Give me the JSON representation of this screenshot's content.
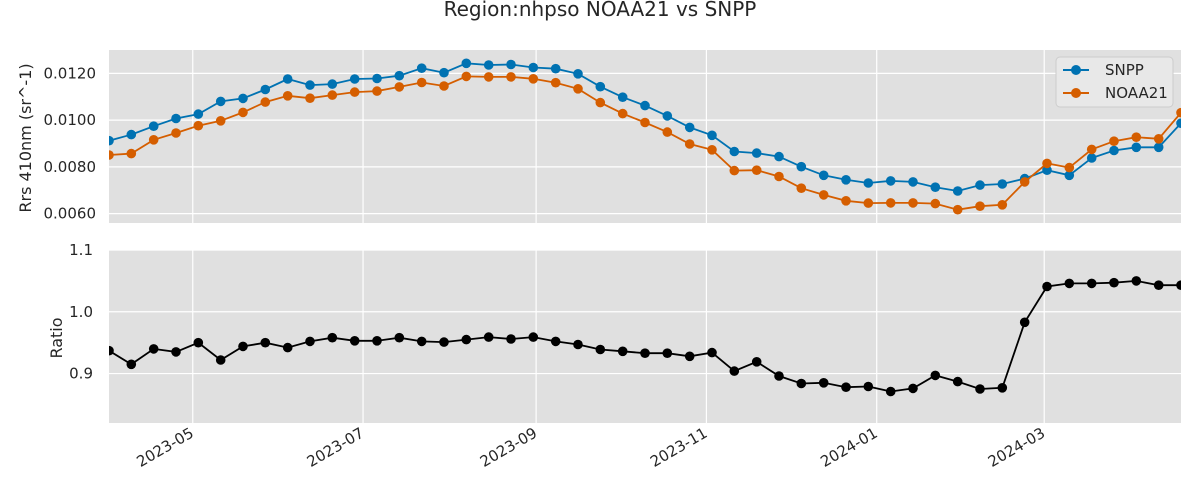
{
  "title": "Region:nhpso NOAA21 vs SNPP",
  "chart_data": [
    {
      "type": "line",
      "ylabel": "Rrs 410nm (sr^-1)",
      "ylim": [
        0.0056,
        0.013
      ],
      "yticks": [
        "0.0060",
        "0.0080",
        "0.0100",
        "0.0120"
      ],
      "ytick_values": [
        0.006,
        0.008,
        0.01,
        0.012
      ],
      "grid": true,
      "legend_position": "top-right",
      "x_dates": [
        "2023-04-01",
        "2023-04-09",
        "2023-04-17",
        "2023-04-25",
        "2023-05-03",
        "2023-05-11",
        "2023-05-19",
        "2023-05-27",
        "2023-06-04",
        "2023-06-12",
        "2023-06-20",
        "2023-06-28",
        "2023-07-06",
        "2023-07-14",
        "2023-07-22",
        "2023-07-30",
        "2023-08-07",
        "2023-08-15",
        "2023-08-23",
        "2023-08-31",
        "2023-09-08",
        "2023-09-16",
        "2023-09-24",
        "2023-10-02",
        "2023-10-10",
        "2023-10-18",
        "2023-10-26",
        "2023-11-03",
        "2023-11-11",
        "2023-11-19",
        "2023-11-27",
        "2023-12-05",
        "2023-12-13",
        "2023-12-21",
        "2023-12-29",
        "2024-01-06",
        "2024-01-14",
        "2024-01-22",
        "2024-01-30",
        "2024-02-07",
        "2024-02-15",
        "2024-02-23",
        "2024-03-02",
        "2024-03-10",
        "2024-03-18",
        "2024-03-26",
        "2024-04-03",
        "2024-04-11",
        "2024-04-19"
      ],
      "series": [
        {
          "name": "SNPP",
          "color": "#0072b2",
          "values": [
            0.00912,
            0.00938,
            0.00974,
            0.01007,
            0.01026,
            0.0108,
            0.01093,
            0.01131,
            0.01176,
            0.0115,
            0.01154,
            0.01176,
            0.01178,
            0.0119,
            0.01222,
            0.01203,
            0.01243,
            0.01236,
            0.01238,
            0.01225,
            0.0122,
            0.01198,
            0.01143,
            0.01098,
            0.01062,
            0.01018,
            0.00969,
            0.00935,
            0.00866,
            0.00859,
            0.00844,
            0.00801,
            0.00764,
            0.00745,
            0.00731,
            0.0074,
            0.00736,
            0.00713,
            0.00697,
            0.00722,
            0.00727,
            0.0075,
            0.00786,
            0.00764,
            0.00838,
            0.0087,
            0.00884,
            0.00884,
            0.00987
          ]
        },
        {
          "name": "NOAA21",
          "color": "#d55e00",
          "values": [
            0.00851,
            0.00857,
            0.00916,
            0.00945,
            0.00976,
            0.00997,
            0.01033,
            0.01077,
            0.01104,
            0.01094,
            0.01107,
            0.0112,
            0.01124,
            0.01142,
            0.01161,
            0.01146,
            0.01187,
            0.01185,
            0.01185,
            0.01177,
            0.0116,
            0.01134,
            0.01075,
            0.01028,
            0.0099,
            0.00949,
            0.00898,
            0.00873,
            0.00784,
            0.00786,
            0.00759,
            0.00709,
            0.0068,
            0.00655,
            0.00645,
            0.00646,
            0.00646,
            0.00643,
            0.00617,
            0.00632,
            0.00638,
            0.00736,
            0.00815,
            0.00797,
            0.00875,
            0.0091,
            0.00927,
            0.0092,
            0.01032
          ]
        }
      ]
    },
    {
      "type": "line",
      "ylabel": "Ratio",
      "ylim": [
        0.82,
        1.1
      ],
      "yticks": [
        "0.9",
        "1.0",
        "1.1"
      ],
      "ytick_values": [
        0.9,
        1.0,
        1.1
      ],
      "grid": true,
      "xticks": [
        "2023-05",
        "2023-07",
        "2023-09",
        "2023-11",
        "2024-01",
        "2024-03"
      ],
      "xtick_dates": [
        "2023-05-01",
        "2023-07-01",
        "2023-09-01",
        "2023-11-01",
        "2024-01-01",
        "2024-03-01"
      ],
      "series": [
        {
          "name": "",
          "color": "#000000",
          "values": [
            0.937,
            0.915,
            0.94,
            0.935,
            0.95,
            0.922,
            0.944,
            0.95,
            0.942,
            0.952,
            0.958,
            0.953,
            0.953,
            0.958,
            0.952,
            0.951,
            0.955,
            0.959,
            0.956,
            0.959,
            0.952,
            0.947,
            0.939,
            0.936,
            0.933,
            0.933,
            0.928,
            0.934,
            0.904,
            0.919,
            0.896,
            0.884,
            0.885,
            0.878,
            0.879,
            0.871,
            0.876,
            0.897,
            0.887,
            0.875,
            0.877,
            0.983,
            1.041,
            1.046,
            1.046,
            1.047,
            1.05,
            1.043,
            1.043
          ]
        }
      ]
    }
  ]
}
